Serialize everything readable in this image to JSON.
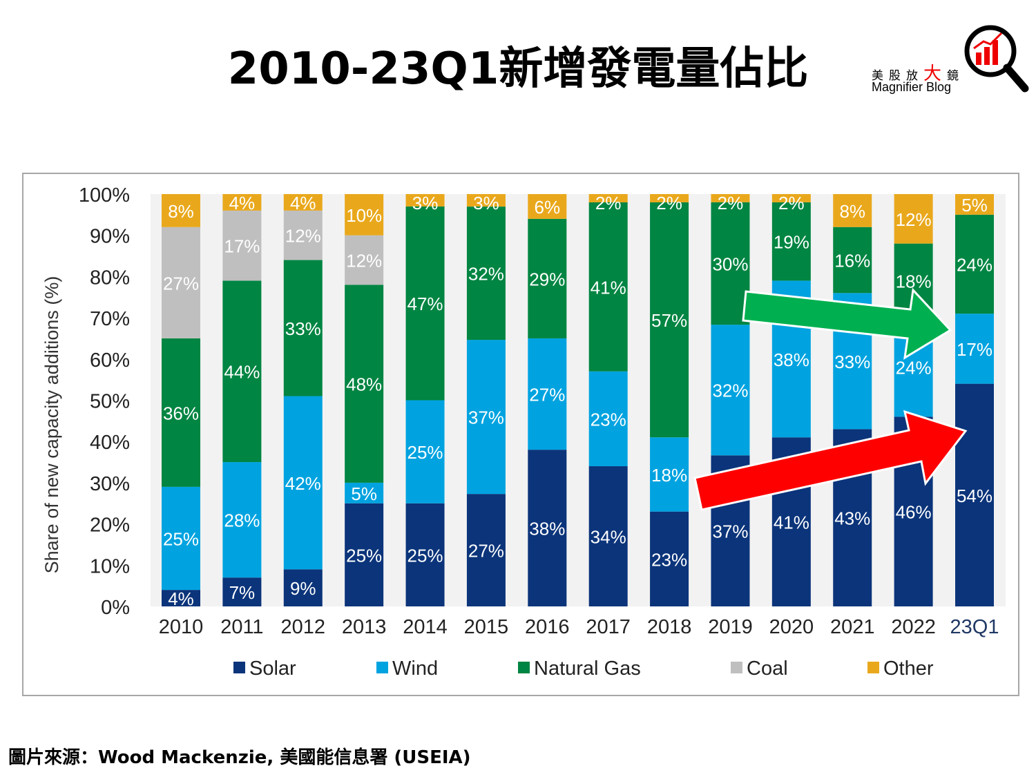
{
  "title": "2010-23Q1新增發電量佔比",
  "logo": {
    "chinese": "美股放大鏡",
    "english": "Magnifier Blog"
  },
  "source": "圖片來源：Wood Mackenzie, 美國能信息署 (USEIA)",
  "chart_data": {
    "type": "bar",
    "stacked": true,
    "ylabel": "Share of new capacity additions (%)",
    "ylim": [
      0,
      100
    ],
    "yticks": [
      "0%",
      "10%",
      "20%",
      "30%",
      "40%",
      "50%",
      "60%",
      "70%",
      "80%",
      "90%",
      "100%"
    ],
    "categories": [
      "2010",
      "2011",
      "2012",
      "2013",
      "2014",
      "2015",
      "2016",
      "2017",
      "2018",
      "2019",
      "2020",
      "2021",
      "2022",
      "23Q1"
    ],
    "series": [
      {
        "name": "Solar",
        "color": "#0b347a",
        "values": [
          4,
          7,
          9,
          25,
          25,
          27,
          38,
          34,
          23,
          37,
          41,
          43,
          46,
          54
        ]
      },
      {
        "name": "Wind",
        "color": "#00a3e0",
        "values": [
          25,
          28,
          42,
          5,
          25,
          37,
          27,
          23,
          18,
          32,
          38,
          33,
          24,
          17
        ]
      },
      {
        "name": "Natural Gas",
        "color": "#008542",
        "values": [
          36,
          44,
          33,
          48,
          47,
          32,
          29,
          41,
          57,
          30,
          19,
          16,
          18,
          24
        ]
      },
      {
        "name": "Coal",
        "color": "#bfbfbf",
        "values": [
          27,
          17,
          12,
          12,
          0,
          0,
          0,
          0,
          0,
          0,
          0,
          0,
          0,
          0
        ]
      },
      {
        "name": "Other",
        "color": "#e9a81c",
        "values": [
          8,
          4,
          4,
          10,
          3,
          3,
          6,
          2,
          2,
          2,
          2,
          8,
          12,
          5
        ]
      }
    ],
    "legend": "bottom",
    "annotations": [
      {
        "type": "arrow",
        "color": "#00b050",
        "from": "2019 natural gas",
        "to": "23Q1"
      },
      {
        "type": "arrow",
        "color": "#ff0000",
        "from": "2018 solar",
        "to": "23Q1"
      }
    ]
  }
}
